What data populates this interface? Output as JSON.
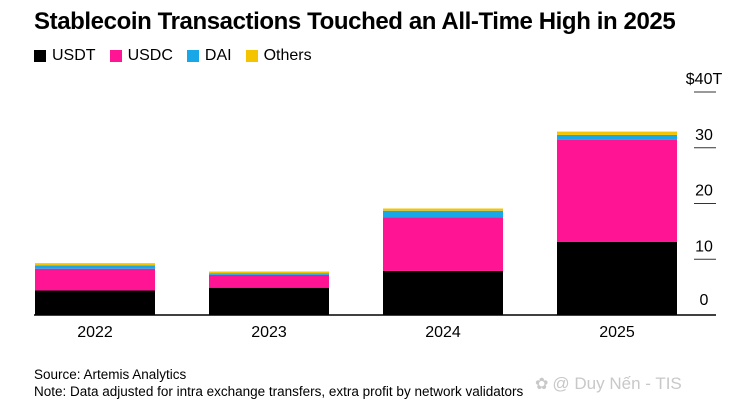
{
  "title": "Stablecoin Transactions Touched an All-Time High in 2025",
  "chart_data": {
    "type": "bar",
    "stacked": true,
    "categories": [
      "2022",
      "2023",
      "2024",
      "2025"
    ],
    "series": [
      {
        "name": "USDT",
        "color": "#000000",
        "values": [
          4.4,
          4.9,
          7.9,
          13.1
        ]
      },
      {
        "name": "USDC",
        "color": "#ff1493",
        "values": [
          3.9,
          2.3,
          9.6,
          18.3
        ]
      },
      {
        "name": "DAI",
        "color": "#18a8e8",
        "values": [
          0.6,
          0.3,
          1.2,
          0.9
        ]
      },
      {
        "name": "Others",
        "color": "#f5c400",
        "values": [
          0.4,
          0.3,
          0.4,
          0.6
        ]
      }
    ],
    "y_ticks": [
      {
        "value": 0,
        "label": "0"
      },
      {
        "value": 10,
        "label": "10"
      },
      {
        "value": 20,
        "label": "20"
      },
      {
        "value": 30,
        "label": "30"
      },
      {
        "value": 40,
        "label": "$40T"
      }
    ],
    "ylim": [
      0,
      40
    ],
    "legend_position": "top-left",
    "grid": "short ticks at right axis"
  },
  "footer": {
    "source": "Source: Artemis Analytics",
    "note": "Note: Data adjusted for intra exchange transfers, extra profit by network validators"
  },
  "watermark": {
    "icon": "flower-logo-icon",
    "text": "@ Duy Nến - TIS"
  }
}
